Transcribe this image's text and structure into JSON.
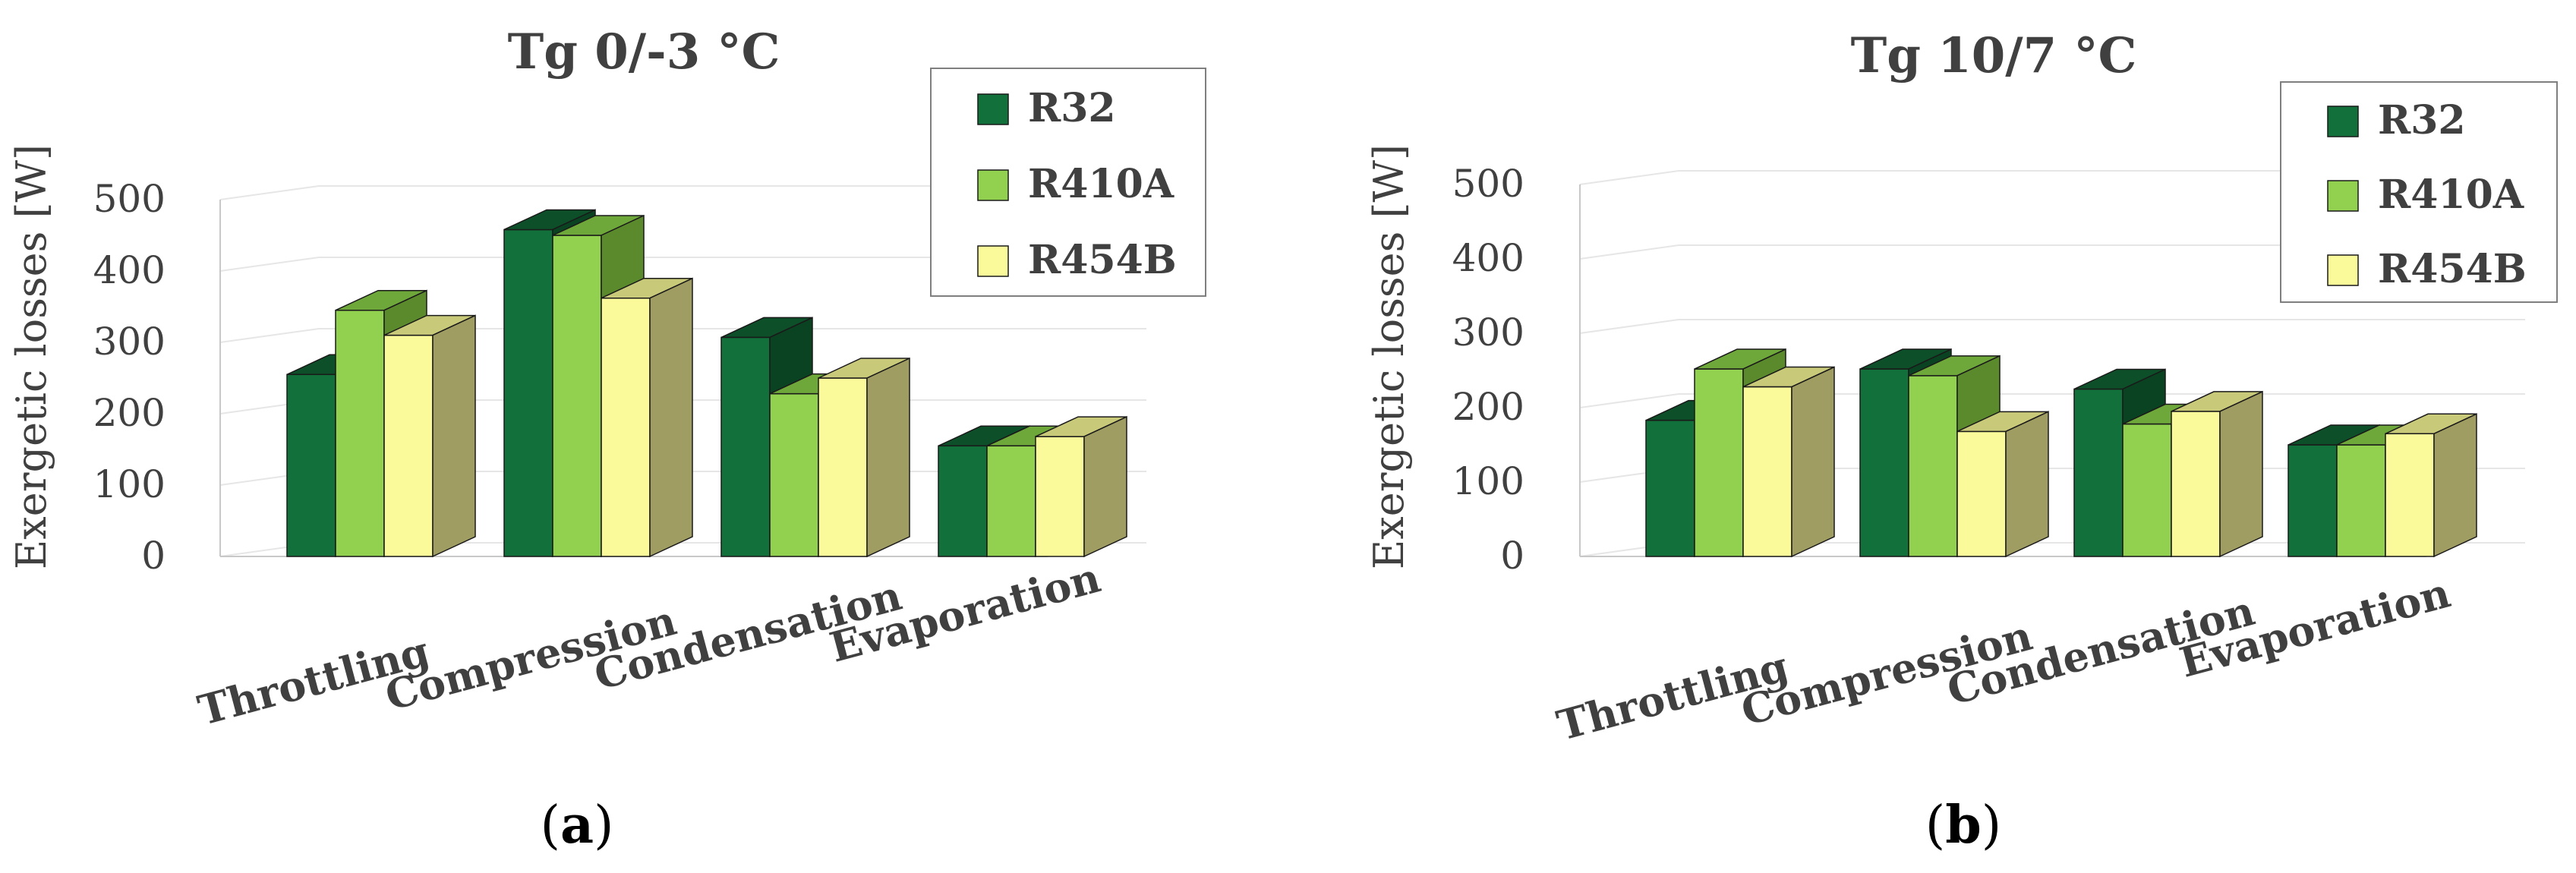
{
  "chart_data": [
    {
      "type": "bar",
      "panel_label": "(a)",
      "title": "Tg 0/-3 °C",
      "xlabel": "",
      "ylabel": "Exergetic losses [W]",
      "ylim": [
        0,
        500
      ],
      "yticks": [
        0,
        100,
        200,
        300,
        400,
        500
      ],
      "categories": [
        "Throttling",
        "Compression",
        "Condensation",
        "Evaporation"
      ],
      "series": [
        {
          "name": "R32",
          "values": [
            255,
            458,
            307,
            155
          ]
        },
        {
          "name": "R410A",
          "values": [
            345,
            450,
            228,
            155
          ]
        },
        {
          "name": "R454B",
          "values": [
            310,
            362,
            250,
            168
          ]
        }
      ],
      "legend": "top-right",
      "grid": true
    },
    {
      "type": "bar",
      "panel_label": "(b)",
      "title": "Tg 10/7 °C",
      "xlabel": "",
      "ylabel": "Exergetic losses [W]",
      "ylim": [
        0,
        500
      ],
      "yticks": [
        0,
        100,
        200,
        300,
        400,
        500
      ],
      "categories": [
        "Throttling",
        "Compression",
        "Condensation",
        "Evaporation"
      ],
      "series": [
        {
          "name": "R32",
          "values": [
            183,
            252,
            225,
            150
          ]
        },
        {
          "name": "R410A",
          "values": [
            252,
            243,
            178,
            150
          ]
        },
        {
          "name": "R454B",
          "values": [
            228,
            168,
            195,
            165
          ]
        }
      ],
      "legend": "top-right",
      "grid": true
    }
  ],
  "colors": {
    "R32": {
      "front": "#12703a",
      "top": "#0c4f28",
      "side": "#0a4322"
    },
    "R410A": {
      "front": "#92d050",
      "top": "#6fa83a",
      "side": "#5b8a2c"
    },
    "R454B": {
      "front": "#fafa9b",
      "top": "#c9c97a",
      "side": "#a09d62"
    },
    "grid": "#e6e6e6",
    "axis": "#c8c8c8",
    "text": "#404040",
    "edge": "#1a1a1a"
  }
}
